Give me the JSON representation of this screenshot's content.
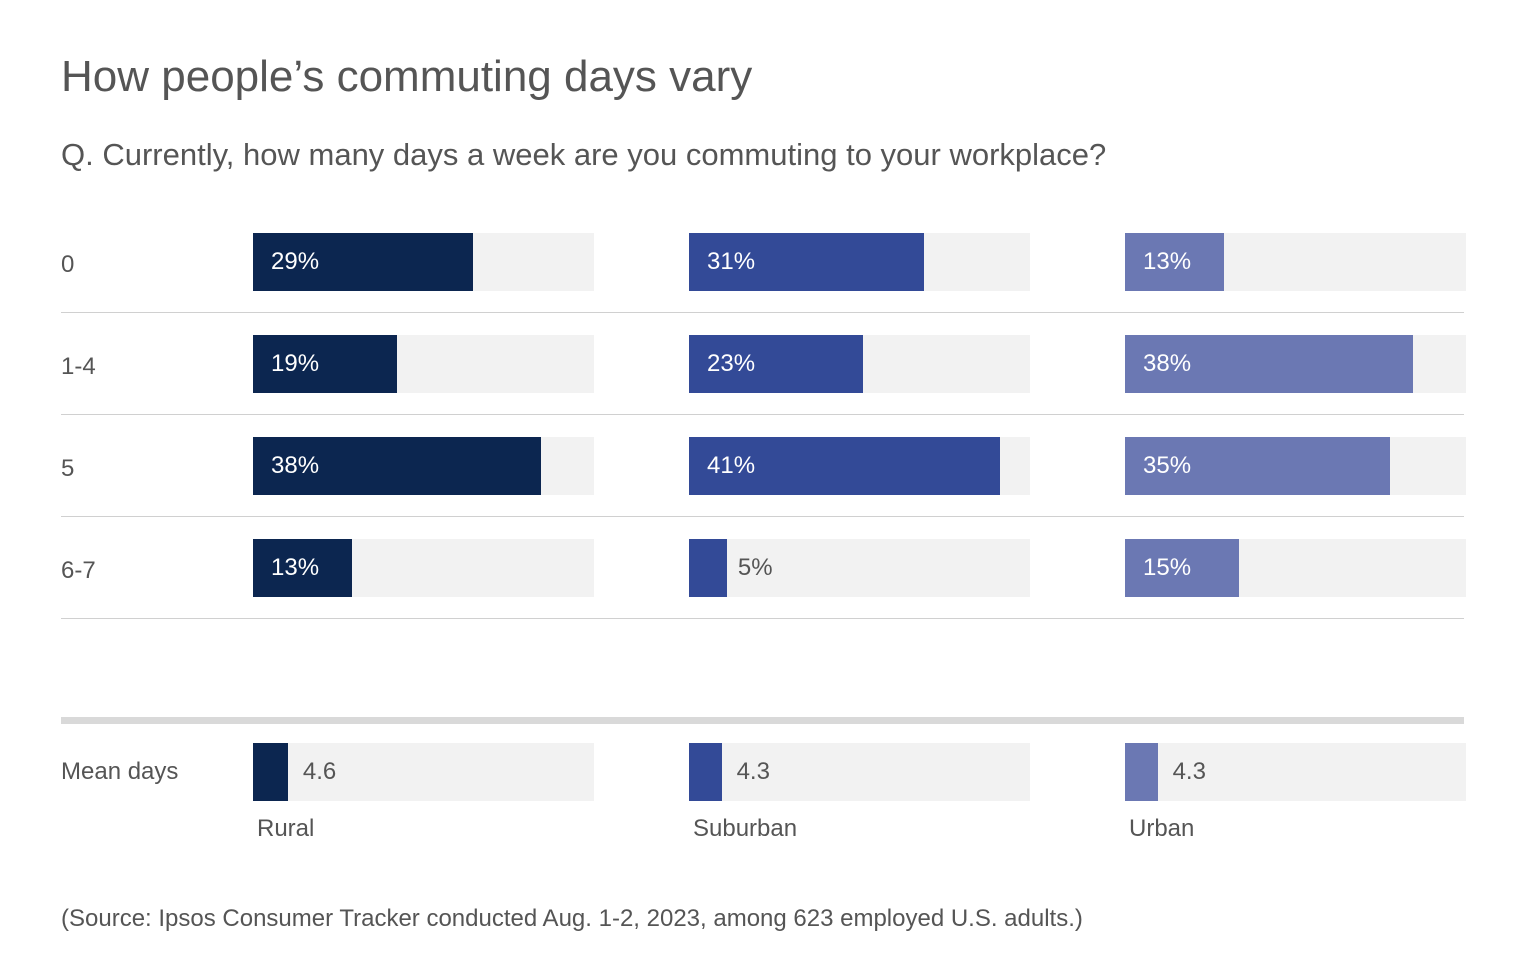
{
  "title": "How people’s commuting  days vary",
  "subtitle": "Q. Currently,  how many days a week are you commuting to your workplace?",
  "source": "(Source: Ipsos Consumer Tracker conducted Aug. 1-2, 2023, among 623 employed U.S. adults.)",
  "chart_data": {
    "type": "bar",
    "orientation": "horizontal",
    "categories": [
      "0",
      "1-4",
      "5",
      "6-7"
    ],
    "series": [
      {
        "name": "Rural",
        "color": "#0c2650",
        "values": [
          29,
          19,
          38,
          13
        ],
        "labels": [
          "29%",
          "19%",
          "38%",
          "13%"
        ]
      },
      {
        "name": "Suburban",
        "color": "#334a97",
        "values": [
          31,
          23,
          41,
          5
        ],
        "labels": [
          "31%",
          "23%",
          "41%",
          "5%"
        ]
      },
      {
        "name": "Urban",
        "color": "#6b78b3",
        "values": [
          13,
          38,
          35,
          15
        ],
        "labels": [
          "13%",
          "38%",
          "35%",
          "15%"
        ]
      }
    ],
    "xlim": [
      0,
      45
    ],
    "mean": {
      "label": "Mean days",
      "values": [
        4.6,
        4.3,
        4.3
      ],
      "labels": [
        "4.6",
        "4.3",
        "4.3"
      ],
      "xlim": [
        0,
        45
      ]
    }
  }
}
